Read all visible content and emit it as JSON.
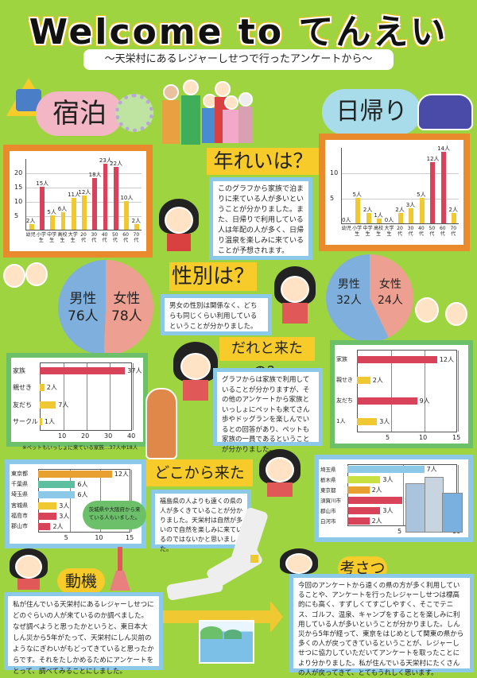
{
  "header": {
    "title": "Welcome to てんえい",
    "subtitle": "～天栄村にあるレジャーしせつで行ったアンケートから～"
  },
  "sections": {
    "stay": "宿泊",
    "daytrip": "日帰り"
  },
  "age": {
    "heading": "年れいは？",
    "text": "このグラフから家族で泊まりに来ている人が多いということが分かりました。また、日帰りで利用している人は年配の人が多く、日帰り温泉を楽しみに来ていることが予想されます。"
  },
  "gender": {
    "heading": "性別は？",
    "text": "男女の性別は関係なく、どちらも同じくらい利用しているということが分かりました。",
    "stay": {
      "male_label": "男性",
      "male_value": "76人",
      "female_label": "女性",
      "female_value": "78人"
    },
    "daytrip": {
      "male_label": "男性",
      "male_value": "32人",
      "female_label": "女性",
      "female_value": "24人"
    }
  },
  "companion": {
    "heading": "だれと来たの？",
    "text": "グラフからは家族で利用していることが分かりますが、その他のアンケートから家族といっしょにペットも来てさん歩やドッグランを楽しんでいるとの回答があり、ペットも家族の一員であるということが分かりました。",
    "note": "※ペットもいっしょに来ている家族…37人中18人"
  },
  "origin": {
    "heading": "どこから来たの？",
    "text": "福島県の人よりも遠くの県の人が多くきていることが分かりました。天栄村は自然が多いので自然を楽しみに来ているのではないかと思いました。",
    "bubble": "茨城県や大阪府から来ている人もいました。"
  },
  "motive": {
    "heading": "動機",
    "text": "私が住んでいる天栄村にあるレジャーしせつにどのぐらいの人が来ているのか調べました。なぜ調べようと思ったかというと、東日本大しん災から5年がたって、天栄村にしん災前のようなにぎわいがもどってきていると思ったからです。それをたしかめるためにアンケートをとって、調べてみることにしました。"
  },
  "consideration": {
    "heading": "考さつ",
    "text": "今回のアンケートから遠くの県の方が多く利用していることや、アンケートを行ったレジャーしせつは標高的にも高く、すずしくてすごしやすく、そこでテニス、ゴルフ、温泉、キャンプをすることを楽しみに利用している人が多いということが分かりました。しん災から5年が経って、東京をはじめとして関東の県から多くの人が戻ってきているということが、レジャーしせつに協力していただいてアンケートを取ったことにより分かりました。私が住んでいる天栄村にたくさんの人が戻ってきて、とてもうれしく思います。"
  },
  "colors": {
    "background": "#9fd441",
    "accent_orange": "#e98a2d",
    "bar_red": "#d9435a",
    "bar_yellow": "#f0c832",
    "male_blue": "#7fb0dd",
    "female_pink": "#eda092",
    "heading_yellow": "#f7cc2a"
  },
  "chart_data": [
    {
      "type": "bar",
      "title": "宿泊 年れい",
      "categories": [
        "幼児",
        "小学生",
        "中学生",
        "高校生",
        "大学生",
        "20代",
        "30代",
        "40代",
        "50代",
        "60代",
        "70代"
      ],
      "values": [
        2,
        15,
        5,
        6,
        11,
        12,
        18,
        23,
        22,
        10,
        2
      ],
      "data_labels": [
        "2人",
        "15人",
        "5人",
        "6人",
        "11人",
        "12人",
        "18人",
        "23人",
        "22人",
        "10人",
        "2人"
      ],
      "yticks": [
        "5",
        "10",
        "15",
        "20"
      ],
      "ylim": [
        0,
        25
      ],
      "grid": true
    },
    {
      "type": "bar",
      "title": "日帰り 年れい",
      "categories": [
        "幼児",
        "小学生",
        "中学生",
        "高校生",
        "大学生",
        "20代",
        "30代",
        "40代",
        "50代",
        "60代",
        "70代"
      ],
      "values": [
        0,
        5,
        2,
        1,
        0,
        2,
        3,
        5,
        12,
        14,
        2
      ],
      "data_labels": [
        "0人",
        "5人",
        "2人",
        "1人",
        "0人",
        "2人",
        "3人",
        "5人",
        "12人",
        "14人",
        "2人"
      ],
      "yticks": [
        "5",
        "10"
      ],
      "ylim": [
        0,
        15
      ],
      "grid": true
    },
    {
      "type": "pie",
      "title": "宿泊 性別",
      "categories": [
        "男性",
        "女性"
      ],
      "values": [
        76,
        78
      ]
    },
    {
      "type": "pie",
      "title": "日帰り 性別",
      "categories": [
        "男性",
        "女性"
      ],
      "values": [
        32,
        24
      ]
    },
    {
      "type": "bar",
      "orientation": "horizontal",
      "title": "宿泊 だれと来たの",
      "categories": [
        "家族",
        "親せき",
        "友だち",
        "サークル"
      ],
      "values": [
        37,
        2,
        7,
        1
      ],
      "data_labels": [
        "37人",
        "2人",
        "7人",
        "1人"
      ],
      "xticks": [
        "10",
        "20",
        "30",
        "40"
      ],
      "xlim": [
        0,
        40
      ]
    },
    {
      "type": "bar",
      "orientation": "horizontal",
      "title": "日帰り だれと来たの",
      "categories": [
        "家族",
        "親せき",
        "友だち",
        "1人"
      ],
      "values": [
        12,
        2,
        9,
        3
      ],
      "data_labels": [
        "12人",
        "2人",
        "9人",
        "3人"
      ],
      "xticks": [
        "5",
        "10",
        "15"
      ],
      "xlim": [
        0,
        15
      ]
    },
    {
      "type": "bar",
      "orientation": "horizontal",
      "title": "宿泊 どこから来たの",
      "categories": [
        "東京都",
        "千葉県",
        "埼玉県",
        "宮城県",
        "福島市",
        "郡山市"
      ],
      "values": [
        12,
        6,
        6,
        3,
        3,
        2
      ],
      "data_labels": [
        "12人",
        "6人",
        "6人",
        "3人",
        "3人",
        "2人"
      ],
      "xticks": [
        "5",
        "10",
        "15"
      ],
      "xlim": [
        0,
        15
      ]
    },
    {
      "type": "bar",
      "orientation": "horizontal",
      "title": "日帰り どこから来たの",
      "categories": [
        "埼玉県",
        "栃木県",
        "東京都",
        "須賀川市",
        "郡山市",
        "白河市"
      ],
      "values": [
        7,
        3,
        2,
        5,
        3,
        2
      ],
      "data_labels": [
        "7人",
        "3人",
        "2人",
        "5人",
        "3人",
        "2人"
      ],
      "xticks": [
        "5",
        "10"
      ],
      "xlim": [
        0,
        10
      ]
    }
  ]
}
